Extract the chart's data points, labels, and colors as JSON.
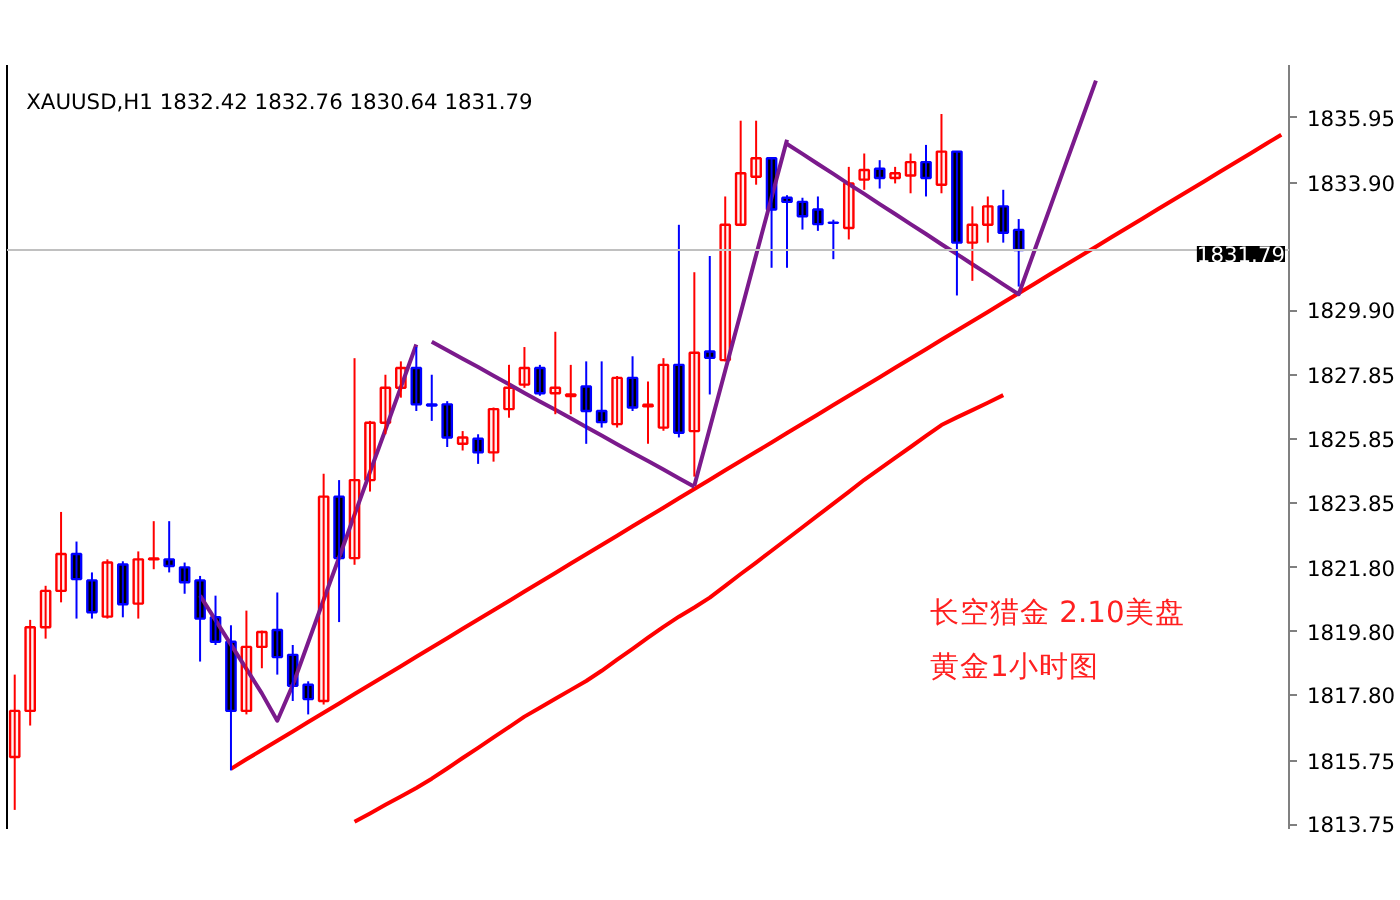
{
  "chart_data": {
    "type": "candlestick",
    "tick_labels": "y",
    "grid": false,
    "marker": "none",
    "annotations": [
      "XAUUSD,H1  1832.42 1832.76 1830.64 1831.79",
      "长空猎金  2.10美盘",
      "黄金1小时图"
    ],
    "categories": [
      null,
      null,
      null,
      null,
      null,
      null,
      null,
      null,
      null,
      null,
      null,
      null,
      null,
      null,
      null,
      null,
      null,
      null,
      null,
      null,
      null,
      null,
      null,
      null,
      null,
      null,
      null,
      null,
      null,
      null,
      null,
      null,
      null,
      null,
      null,
      null,
      null,
      null,
      null,
      null,
      null,
      null,
      null,
      null,
      null,
      null,
      null,
      null,
      null,
      null,
      null,
      null,
      null,
      null,
      null,
      null,
      null,
      null,
      null,
      null,
      null,
      null,
      null,
      null,
      null,
      null,
      null,
      null,
      null,
      null,
      null,
      null,
      null,
      null,
      null,
      null,
      null,
      null,
      null,
      null,
      null,
      null,
      null
    ],
    "ylim": [
      1813.6,
      1837.6
    ],
    "yticks": [
      {
        "value": 1813.75,
        "label": "1813.75"
      },
      {
        "value": 1815.75,
        "label": "1815.75"
      },
      {
        "value": 1817.8,
        "label": "1817.80"
      },
      {
        "value": 1819.8,
        "label": "1819.80"
      },
      {
        "value": 1821.8,
        "label": "1821.80"
      },
      {
        "value": 1823.85,
        "label": "1823.85"
      },
      {
        "value": 1825.85,
        "label": "1825.85"
      },
      {
        "value": 1827.85,
        "label": "1827.85"
      },
      {
        "value": 1829.9,
        "label": "1829.90"
      },
      {
        "value": 1833.9,
        "label": "1833.90"
      },
      {
        "value": 1835.95,
        "label": "1835.95"
      }
    ],
    "ref_lines": [
      {
        "axis": "y",
        "value": 1831.79,
        "label": "1831.79",
        "color": "#c0c0c0"
      }
    ],
    "ohlc": [
      [
        1815.86,
        1818.45,
        1814.2,
        1817.31
      ],
      [
        1817.31,
        1820.17,
        1816.85,
        1819.94
      ],
      [
        1819.94,
        1821.24,
        1819.58,
        1821.08
      ],
      [
        1821.08,
        1823.56,
        1820.72,
        1822.24
      ],
      [
        1822.24,
        1822.63,
        1820.21,
        1821.45
      ],
      [
        1821.41,
        1821.66,
        1820.21,
        1820.41
      ],
      [
        1820.27,
        1822.07,
        1820.21,
        1821.97
      ],
      [
        1821.91,
        1822.01,
        1820.25,
        1820.66
      ],
      [
        1820.68,
        1822.32,
        1820.21,
        1822.07
      ],
      [
        1822.07,
        1823.27,
        1821.76,
        1822.1
      ],
      [
        1822.07,
        1823.27,
        1821.66,
        1821.86
      ],
      [
        1821.82,
        1821.97,
        1820.99,
        1821.35
      ],
      [
        1821.41,
        1821.55,
        1818.86,
        1820.21
      ],
      [
        1820.25,
        1820.93,
        1819.38,
        1819.48
      ],
      [
        1819.48,
        1820.0,
        1815.44,
        1817.31
      ],
      [
        1817.31,
        1820.46,
        1817.2,
        1819.32
      ],
      [
        1819.32,
        1819.83,
        1818.65,
        1819.79
      ],
      [
        1819.85,
        1821.03,
        1818.45,
        1819.0
      ],
      [
        1819.07,
        1819.38,
        1817.62,
        1818.1
      ],
      [
        1818.13,
        1818.24,
        1817.2,
        1817.68
      ],
      [
        1817.62,
        1824.76,
        1817.51,
        1824.04
      ],
      [
        1824.04,
        1824.56,
        1820.1,
        1822.11
      ],
      [
        1822.11,
        1828.39,
        1821.9,
        1824.56
      ],
      [
        1824.56,
        1826.42,
        1824.2,
        1826.36
      ],
      [
        1826.36,
        1827.87,
        1826.0,
        1827.46
      ],
      [
        1827.46,
        1828.29,
        1827.15,
        1828.08
      ],
      [
        1828.08,
        1828.74,
        1826.73,
        1826.94
      ],
      [
        1826.94,
        1827.87,
        1826.42,
        1826.9
      ],
      [
        1826.94,
        1827.04,
        1825.6,
        1825.9
      ],
      [
        1825.7,
        1826.1,
        1825.49,
        1825.9
      ],
      [
        1825.86,
        1826.0,
        1825.07,
        1825.43
      ],
      [
        1825.43,
        1826.84,
        1825.14,
        1826.79
      ],
      [
        1826.79,
        1828.18,
        1826.52,
        1827.46
      ],
      [
        1827.56,
        1828.74,
        1827.46,
        1828.08
      ],
      [
        1828.08,
        1828.18,
        1827.21,
        1827.29
      ],
      [
        1827.29,
        1829.22,
        1826.63,
        1827.46
      ],
      [
        1827.2,
        1828.18,
        1826.63,
        1827.25
      ],
      [
        1827.5,
        1828.29,
        1825.7,
        1826.73
      ],
      [
        1826.73,
        1828.29,
        1826.21,
        1826.38
      ],
      [
        1826.32,
        1827.83,
        1826.21,
        1827.77
      ],
      [
        1827.77,
        1828.45,
        1826.73,
        1826.84
      ],
      [
        1826.88,
        1827.66,
        1825.7,
        1826.93
      ],
      [
        1826.21,
        1828.39,
        1826.11,
        1828.18
      ],
      [
        1828.18,
        1832.58,
        1825.9,
        1826.05
      ],
      [
        1826.1,
        1831.09,
        1824.67,
        1828.56
      ],
      [
        1828.6,
        1831.6,
        1827.25,
        1828.4
      ],
      [
        1828.33,
        1833.47,
        1828.29,
        1832.58
      ],
      [
        1832.58,
        1835.85,
        1832.54,
        1834.2
      ],
      [
        1834.09,
        1835.85,
        1833.84,
        1834.67
      ],
      [
        1834.67,
        1834.71,
        1831.23,
        1833.06
      ],
      [
        1833.43,
        1833.51,
        1831.23,
        1833.3
      ],
      [
        1833.3,
        1833.43,
        1832.43,
        1832.85
      ],
      [
        1833.06,
        1833.47,
        1832.39,
        1832.6
      ],
      [
        1832.65,
        1832.74,
        1831.5,
        1832.64
      ],
      [
        1832.48,
        1834.4,
        1832.12,
        1833.88
      ],
      [
        1834.0,
        1834.82,
        1833.68,
        1834.3
      ],
      [
        1834.34,
        1834.61,
        1833.72,
        1834.05
      ],
      [
        1834.05,
        1834.4,
        1833.88,
        1834.2
      ],
      [
        1834.13,
        1834.82,
        1833.57,
        1834.55
      ],
      [
        1834.55,
        1835.09,
        1833.47,
        1834.05
      ],
      [
        1833.84,
        1836.06,
        1833.57,
        1834.88
      ],
      [
        1834.88,
        1834.88,
        1830.36,
        1832.02
      ],
      [
        1832.02,
        1833.16,
        1830.82,
        1832.58
      ],
      [
        1832.58,
        1833.47,
        1832.02,
        1833.16
      ],
      [
        1833.16,
        1833.68,
        1832.02,
        1832.33
      ],
      [
        1832.42,
        1832.76,
        1830.64,
        1831.79
      ],
      null,
      null,
      null,
      null,
      null,
      null,
      null,
      null,
      null,
      null,
      null,
      null,
      null,
      null,
      null,
      null,
      null
    ],
    "colors": [
      "#ff0000",
      "#ff0000",
      "#ff0000",
      "#ff0000",
      "#0000ff",
      "#0000ff",
      "#ff0000",
      "#0000ff",
      "#ff0000",
      "#ff0000",
      "#0000ff",
      "#0000ff",
      "#0000ff",
      "#0000ff",
      "#0000ff",
      "#ff0000",
      "#ff0000",
      "#0000ff",
      "#0000ff",
      "#0000ff",
      "#ff0000",
      "#0000ff",
      "#ff0000",
      "#ff0000",
      "#ff0000",
      "#ff0000",
      "#0000ff",
      "#0000ff",
      "#0000ff",
      "#ff0000",
      "#0000ff",
      "#ff0000",
      "#ff0000",
      "#ff0000",
      "#0000ff",
      "#ff0000",
      "#ff0000",
      "#0000ff",
      "#0000ff",
      "#ff0000",
      "#0000ff",
      "#ff0000",
      "#ff0000",
      "#0000ff",
      "#ff0000",
      "#0000ff",
      "#ff0000",
      "#ff0000",
      "#ff0000",
      "#0000ff",
      "#0000ff",
      "#0000ff",
      "#0000ff",
      "#0000ff",
      "#ff0000",
      "#ff0000",
      "#0000ff",
      "#ff0000",
      "#ff0000",
      "#0000ff",
      "#ff0000",
      "#0000ff",
      "#ff0000",
      "#ff0000",
      "#0000ff",
      "#0000ff",
      null,
      null,
      null,
      null,
      null,
      null,
      null,
      null,
      null,
      null,
      null,
      null,
      null,
      null,
      null,
      null,
      null
    ],
    "series": [
      {
        "type": "line",
        "color": "#ff0000",
        "values": [
          null,
          null,
          null,
          null,
          null,
          null,
          null,
          null,
          null,
          null,
          null,
          null,
          null,
          null,
          1815.49,
          1815.79,
          1816.08,
          1816.37,
          1816.66,
          1816.96,
          1817.25,
          1817.54,
          1817.84,
          1818.13,
          1818.42,
          1818.71,
          1819.01,
          1819.3,
          1819.59,
          1819.89,
          1820.18,
          1820.47,
          1820.76,
          1821.06,
          1821.35,
          1821.64,
          1821.94,
          1822.23,
          1822.52,
          1822.81,
          1823.11,
          1823.4,
          1823.69,
          1823.99,
          1824.28,
          1824.57,
          1824.87,
          1825.16,
          1825.45,
          1825.74,
          1826.04,
          1826.33,
          1826.62,
          1826.92,
          1827.21,
          1827.5,
          1827.79,
          1828.09,
          1828.38,
          1828.67,
          1828.97,
          1829.26,
          1829.55,
          1829.84,
          1830.14,
          1830.43,
          1830.72,
          1831.02,
          1831.31,
          1831.6,
          1831.89,
          1832.19,
          1832.48,
          1832.77,
          1833.07,
          1833.36,
          1833.65,
          1833.94,
          1834.24,
          1834.53,
          1834.82,
          1835.12,
          1835.41
        ]
      },
      {
        "type": "line",
        "color": "#ff0000",
        "values": [
          null,
          null,
          null,
          null,
          null,
          null,
          null,
          null,
          null,
          null,
          null,
          null,
          null,
          null,
          null,
          null,
          null,
          null,
          null,
          null,
          null,
          null,
          1813.83,
          1814.09,
          1814.36,
          1814.62,
          1814.89,
          1815.18,
          1815.5,
          1815.83,
          1816.15,
          1816.48,
          1816.8,
          1817.13,
          1817.41,
          1817.69,
          1817.97,
          1818.25,
          1818.57,
          1818.92,
          1819.26,
          1819.61,
          1819.95,
          1820.27,
          1820.56,
          1820.87,
          1821.24,
          1821.61,
          1821.97,
          1822.34,
          1822.71,
          1823.08,
          1823.45,
          1823.82,
          1824.19,
          1824.57,
          1824.91,
          1825.26,
          1825.6,
          1825.95,
          1826.29,
          1826.53,
          1826.76,
          1826.99,
          1827.23,
          null,
          null,
          null,
          null,
          null,
          null,
          null,
          null,
          null,
          null,
          null,
          null,
          null,
          null,
          null,
          null,
          null,
          null
        ]
      },
      {
        "type": "line",
        "color": "#7b1a8c",
        "values": [
          null,
          null,
          null,
          null,
          null,
          null,
          null,
          null,
          null,
          null,
          null,
          null,
          1820.93,
          1820.16,
          1819.39,
          1818.63,
          1817.86,
          1817.0,
          1818.12,
          1819.46,
          1820.8,
          1822.13,
          1823.47,
          1824.81,
          1826.14,
          1827.48,
          1828.82,
          null,
          null,
          null,
          null,
          null,
          null,
          null,
          null,
          null,
          null,
          null,
          null,
          null,
          null,
          null,
          null,
          null,
          null,
          null,
          null,
          null,
          null,
          null,
          null,
          null,
          null,
          null,
          null,
          null,
          null,
          null,
          null,
          null,
          null,
          null,
          null,
          null,
          null,
          null,
          null,
          null,
          null,
          null,
          null,
          null,
          null,
          null,
          null,
          null,
          null,
          null,
          null,
          null,
          null,
          null,
          null
        ]
      },
      {
        "type": "line",
        "color": "#7b1a8c",
        "values": [
          null,
          null,
          null,
          null,
          null,
          null,
          null,
          null,
          null,
          null,
          null,
          null,
          null,
          null,
          null,
          null,
          null,
          null,
          null,
          null,
          null,
          null,
          null,
          null,
          null,
          null,
          null,
          1828.91,
          1828.64,
          1828.37,
          1828.11,
          1827.84,
          1827.57,
          1827.3,
          1827.03,
          1826.77,
          1826.5,
          1826.23,
          1825.96,
          1825.69,
          1825.42,
          1825.16,
          1824.89,
          1824.62,
          1824.35,
          null,
          null,
          null,
          null,
          null,
          null,
          null,
          null,
          null,
          null,
          null,
          null,
          null,
          null,
          null,
          null,
          null,
          null,
          null,
          null,
          null,
          null,
          null,
          null,
          null,
          null,
          null,
          null,
          null,
          null,
          null,
          null,
          null,
          null,
          null,
          null,
          null,
          null
        ]
      },
      {
        "type": "line",
        "color": "#7b1a8c",
        "values": [
          null,
          null,
          null,
          null,
          null,
          null,
          null,
          null,
          null,
          null,
          null,
          null,
          null,
          null,
          null,
          null,
          null,
          null,
          null,
          null,
          null,
          null,
          null,
          null,
          null,
          null,
          null,
          null,
          null,
          null,
          null,
          null,
          null,
          null,
          null,
          null,
          null,
          null,
          null,
          null,
          null,
          null,
          null,
          null,
          1824.38,
          1826.19,
          1828.0,
          1829.81,
          1831.63,
          1833.44,
          1835.25,
          null,
          null,
          null,
          null,
          null,
          null,
          null,
          null,
          null,
          null,
          null,
          null,
          null,
          null,
          null,
          null,
          null,
          null,
          null,
          null,
          null,
          null,
          null,
          null,
          null,
          null,
          null,
          null,
          null,
          null,
          null,
          null
        ]
      },
      {
        "type": "line",
        "color": "#7b1a8c",
        "values": [
          null,
          null,
          null,
          null,
          null,
          null,
          null,
          null,
          null,
          null,
          null,
          null,
          null,
          null,
          null,
          null,
          null,
          null,
          null,
          null,
          null,
          null,
          null,
          null,
          null,
          null,
          null,
          null,
          null,
          null,
          null,
          null,
          null,
          null,
          null,
          null,
          null,
          null,
          null,
          null,
          null,
          null,
          null,
          null,
          null,
          null,
          null,
          null,
          null,
          null,
          1835.12,
          1834.81,
          1834.49,
          1834.18,
          1833.86,
          1833.55,
          1833.23,
          1832.92,
          1832.6,
          1832.29,
          1831.97,
          1831.66,
          1831.34,
          1831.03,
          1830.71,
          1830.4,
          1831.74,
          1833.08,
          1834.43,
          1835.77,
          1837.11,
          null,
          null,
          null,
          null,
          null,
          null,
          null,
          null,
          null,
          null,
          null,
          null
        ]
      }
    ]
  }
}
